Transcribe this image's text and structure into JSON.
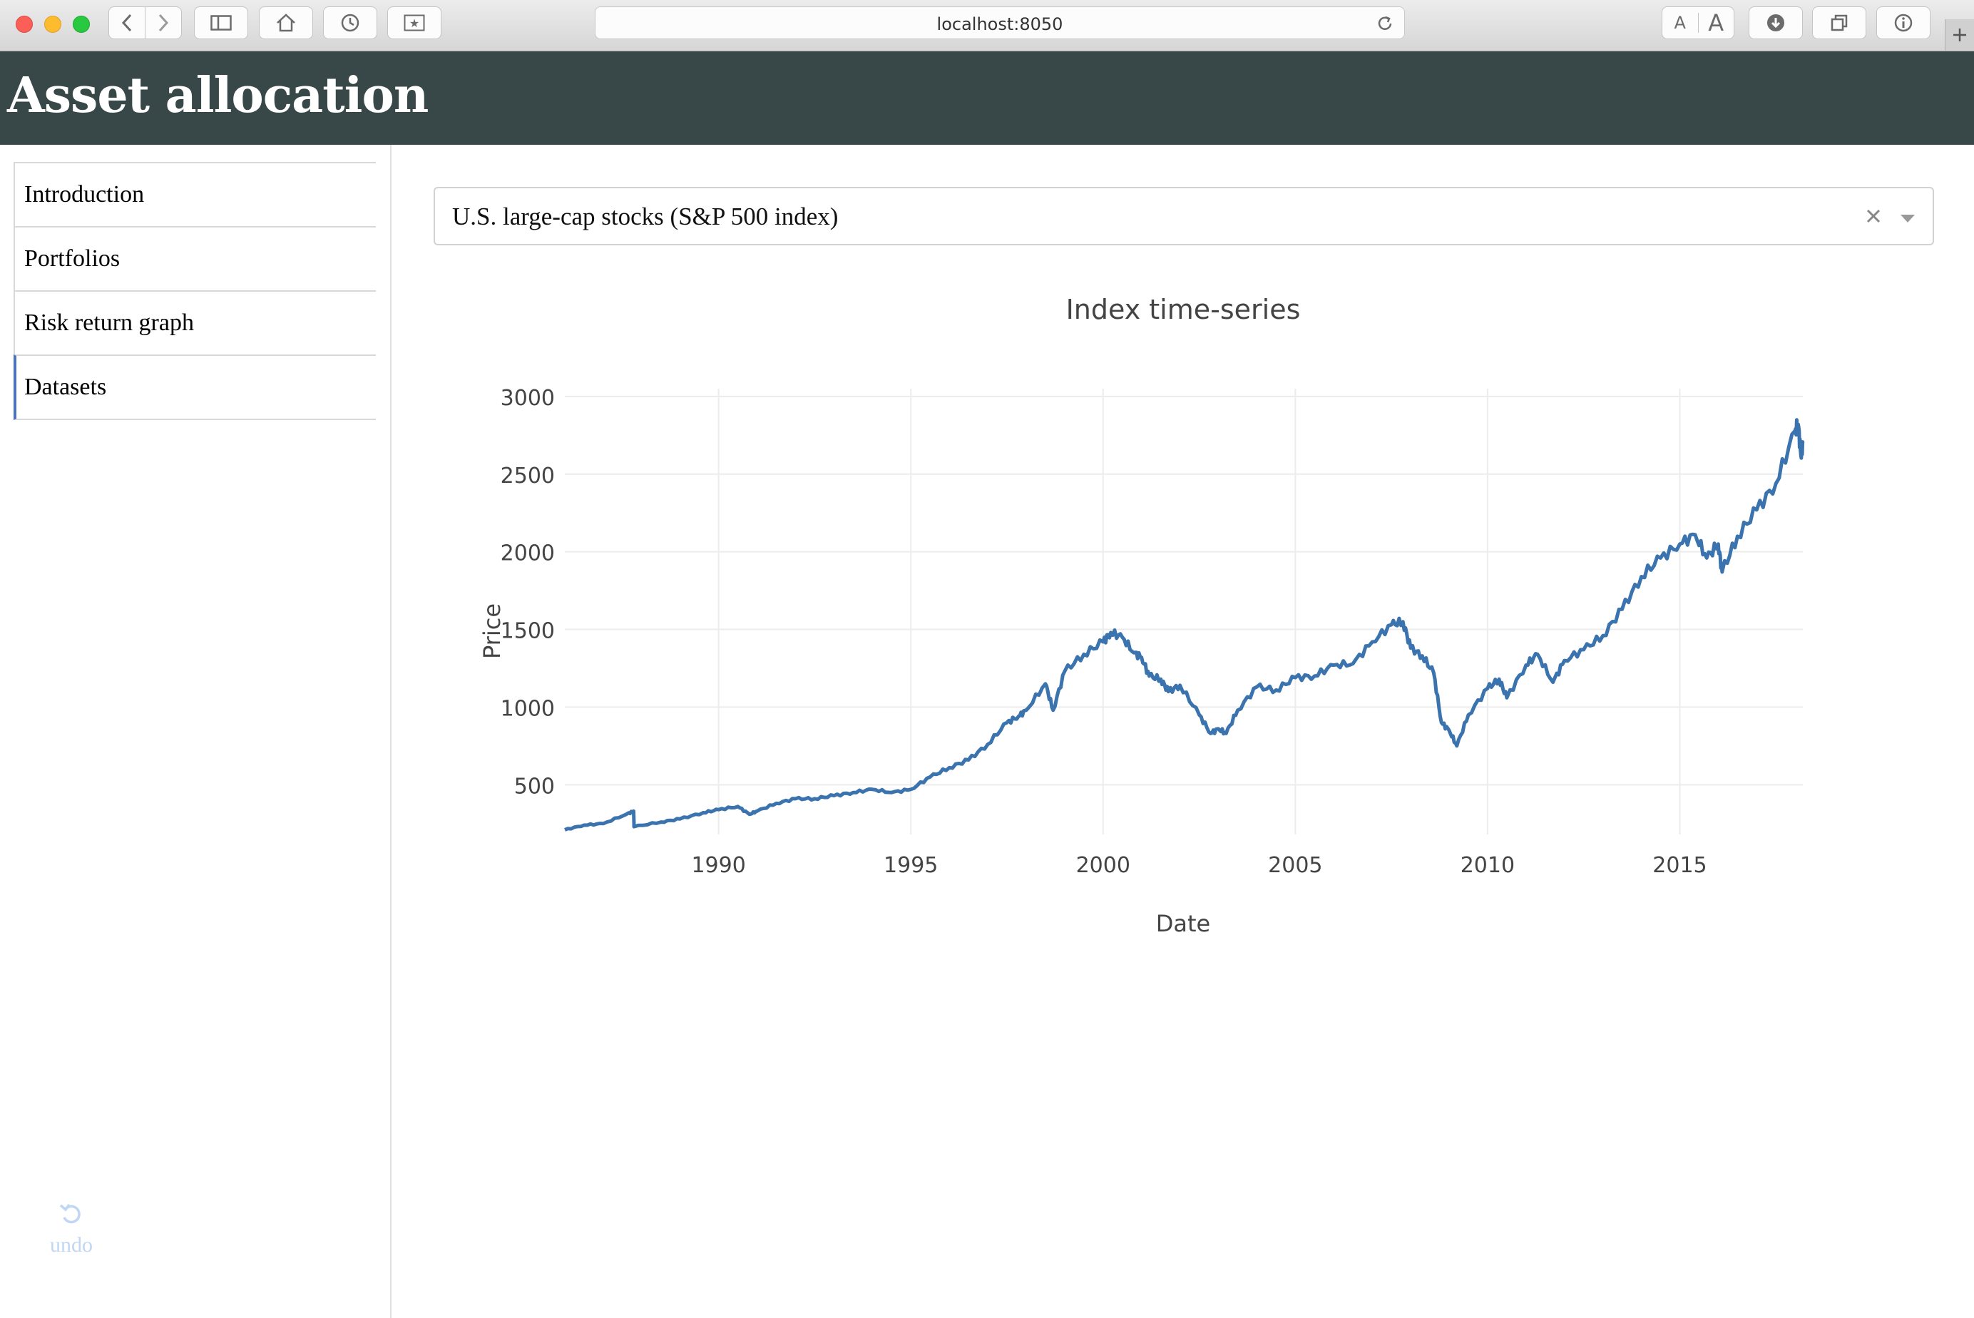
{
  "browser": {
    "url": "localhost:8050",
    "font_small": "A",
    "font_large": "A"
  },
  "header": {
    "title": "Asset allocation"
  },
  "sidebar": {
    "items": [
      {
        "label": "Introduction",
        "active": false
      },
      {
        "label": "Portfolios",
        "active": false
      },
      {
        "label": "Risk return graph",
        "active": false
      },
      {
        "label": "Datasets",
        "active": true
      }
    ],
    "undo_label": "undo"
  },
  "dataset_select": {
    "value": "U.S. large-cap stocks (S&P 500 index)"
  },
  "colors": {
    "header_bg": "#384747",
    "line": "#3a73ad",
    "active_nav": "#4a72c9"
  },
  "chart_data": {
    "type": "line",
    "title": "Index time-series",
    "xlabel": "Date",
    "ylabel": "Price",
    "xlim": [
      1986.0,
      2018.2
    ],
    "ylim": [
      180,
      3050
    ],
    "x_ticks": [
      1990,
      1995,
      2000,
      2005,
      2010,
      2015
    ],
    "y_ticks": [
      500,
      1000,
      1500,
      2000,
      2500,
      3000
    ],
    "grid": true,
    "series": [
      {
        "x": [
          1986.0,
          1986.5,
          1987.0,
          1987.6,
          1987.79,
          1987.8,
          1988.5,
          1989.0,
          1989.6,
          1990.0,
          1990.5,
          1990.8,
          1991.0,
          1991.5,
          1992.0,
          1992.5,
          1993.0,
          1993.5,
          1994.0,
          1994.5,
          1995.0,
          1995.5,
          1996.0,
          1996.5,
          1997.0,
          1997.5,
          1997.8,
          1998.0,
          1998.5,
          1998.7,
          1999.0,
          1999.5,
          2000.0,
          2000.2,
          2000.5,
          2000.8,
          2001.0,
          2001.2,
          2001.5,
          2001.7,
          2002.0,
          2002.5,
          2002.8,
          2003.0,
          2003.2,
          2003.5,
          2004.0,
          2004.5,
          2005.0,
          2005.5,
          2006.0,
          2006.5,
          2007.0,
          2007.5,
          2007.8,
          2008.0,
          2008.3,
          2008.6,
          2008.8,
          2009.0,
          2009.2,
          2009.5,
          2010.0,
          2010.3,
          2010.5,
          2011.0,
          2011.3,
          2011.7,
          2012.0,
          2012.5,
          2013.0,
          2013.5,
          2014.0,
          2014.5,
          2015.0,
          2015.4,
          2015.7,
          2016.0,
          2016.1,
          2016.5,
          2017.0,
          2017.5,
          2018.0,
          2018.08,
          2018.15,
          2018.2
        ],
        "y": [
          210,
          240,
          250,
          310,
          330,
          230,
          260,
          280,
          320,
          340,
          360,
          310,
          330,
          380,
          410,
          410,
          430,
          450,
          470,
          450,
          470,
          550,
          610,
          660,
          760,
          900,
          940,
          980,
          1150,
          980,
          1230,
          1340,
          1420,
          1480,
          1450,
          1350,
          1320,
          1200,
          1180,
          1100,
          1140,
          950,
          830,
          860,
          830,
          980,
          1130,
          1110,
          1190,
          1200,
          1270,
          1280,
          1420,
          1530,
          1550,
          1380,
          1330,
          1220,
          900,
          850,
          750,
          950,
          1120,
          1180,
          1060,
          1270,
          1340,
          1160,
          1300,
          1370,
          1460,
          1630,
          1840,
          1960,
          2050,
          2110,
          1960,
          2050,
          1870,
          2100,
          2270,
          2440,
          2780,
          2820,
          2620,
          2700
        ]
      }
    ]
  }
}
